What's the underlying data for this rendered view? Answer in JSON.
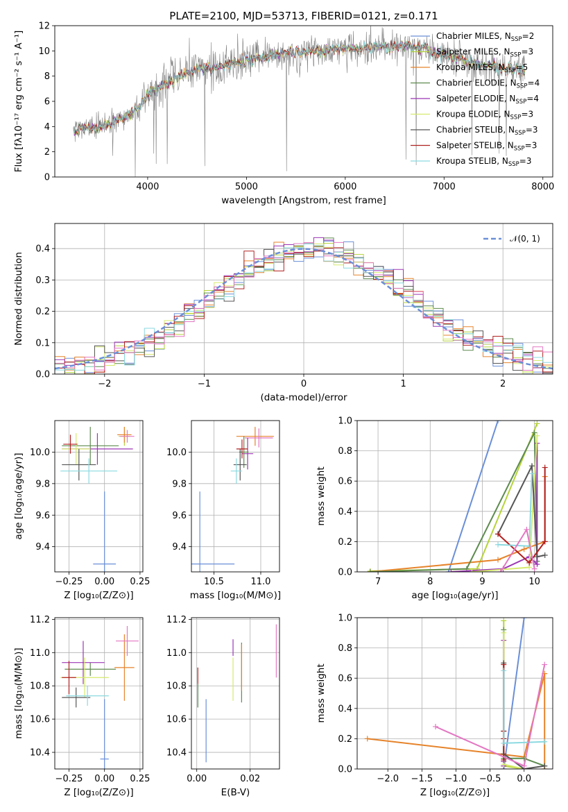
{
  "chart_data": [
    {
      "id": "spectrum",
      "type": "line",
      "title": "PLATE=2100, MJD=53713, FIBERID=0121, z=0.171",
      "xlabel": "wavelength [Angstrom, rest frame]",
      "ylabel": "Flux [fλ10⁻¹⁷ erg cm⁻² s⁻¹ A⁻¹]",
      "xlim": [
        3060,
        8100
      ],
      "ylim": [
        0,
        12
      ],
      "xticks": [
        4000,
        5000,
        6000,
        7000,
        8000
      ],
      "yticks": [
        0,
        2,
        4,
        6,
        8,
        10,
        12
      ],
      "grid": false,
      "legend_position": "right",
      "data_color": "#808080",
      "legend": [
        {
          "name": "Chabrier MILES, N",
          "sub": "SSP",
          "tail": "=2",
          "color": "#6a8fd8"
        },
        {
          "name": "Salpeter MILES, N",
          "sub": "SSP",
          "tail": "=3",
          "color": "#b5d33a"
        },
        {
          "name": "Kroupa MILES, N",
          "sub": "SSP",
          "tail": "=5",
          "color": "#e6832a"
        },
        {
          "name": "Chabrier ELODIE, N",
          "sub": "SSP",
          "tail": "=4",
          "color": "#5d8a4e"
        },
        {
          "name": "Salpeter ELODIE, N",
          "sub": "SSP",
          "tail": "=4",
          "color": "#9b35b5"
        },
        {
          "name": "Kroupa ELODIE, N",
          "sub": "SSP",
          "tail": "=3",
          "color": "#d6ea6c"
        },
        {
          "name": "Chabrier STELIB, N",
          "sub": "SSP",
          "tail": "=3",
          "color": "#555555"
        },
        {
          "name": "Salpeter STELIB, N",
          "sub": "SSP",
          "tail": "=3",
          "color": "#b02020"
        },
        {
          "name": "Kroupa STELIB, N",
          "sub": "SSP",
          "tail": "=3",
          "color": "#8ad9e0"
        }
      ],
      "continuum": {
        "x": [
          3250,
          3500,
          3700,
          3900,
          4000,
          4200,
          4400,
          4600,
          4800,
          5000,
          5200,
          5400,
          5600,
          5800,
          6000,
          6200,
          6400,
          6600,
          6800,
          7000,
          7200,
          7400,
          7600,
          7800
        ],
        "y": [
          3.8,
          3.9,
          4.5,
          5.4,
          6.6,
          7.5,
          8.3,
          8.6,
          8.9,
          9.2,
          9.6,
          9.8,
          10.0,
          10.0,
          10.2,
          10.2,
          10.3,
          10.4,
          10.2,
          9.6,
          9.2,
          8.9,
          8.7,
          8.5
        ]
      }
    },
    {
      "id": "residuals",
      "type": "histogram",
      "xlabel": "(data-model)/error",
      "ylabel": "Normed distribution",
      "xlim": [
        -2.5,
        2.5
      ],
      "ylim": [
        0,
        0.48
      ],
      "xticks": [
        -2,
        -1,
        0,
        1,
        2
      ],
      "yticks": [
        0.0,
        0.1,
        0.2,
        0.3,
        0.4
      ],
      "grid": true,
      "legend": "𝒩(0, 1)",
      "legend_position": "top-right",
      "normal_curve": {
        "mean": 0.0,
        "sigma": 1.0,
        "color": "#6a8fd8"
      },
      "bin_edges_start": -2.5,
      "bin_width": 0.1
    },
    {
      "id": "age_vs_Z",
      "type": "errorbar",
      "xlabel": "Z [log₁₀(Z/Z⊙)]",
      "ylabel": "age  [log₁₀(age/yr)]",
      "xlim": [
        -0.35,
        0.27
      ],
      "ylim": [
        9.24,
        10.2
      ],
      "xticks": [
        -0.25,
        0.0,
        0.25
      ],
      "xticklabels": [
        "−0.25",
        "0.00",
        "0.25"
      ],
      "yticks": [
        9.4,
        9.6,
        9.8,
        10.0
      ],
      "grid": true,
      "points": [
        {
          "x": 0.0,
          "xerr": 0.08,
          "y": 9.29,
          "yerr": 0.46,
          "color": "#6a8fd8"
        },
        {
          "x": 0.14,
          "xerr": 0.04,
          "y": 10.1,
          "yerr": 0.06,
          "color": "#b5d33a"
        },
        {
          "x": 0.14,
          "xerr": 0.05,
          "y": 10.11,
          "yerr": 0.05,
          "color": "#e6832a"
        },
        {
          "x": -0.1,
          "xerr": 0.2,
          "y": 10.04,
          "yerr": 0.12,
          "color": "#5d8a4e"
        },
        {
          "x": -0.05,
          "xerr": 0.25,
          "y": 10.02,
          "yerr": 0.1,
          "color": "#9b35b5"
        },
        {
          "x": -0.2,
          "xerr": 0.1,
          "y": 10.02,
          "yerr": 0.1,
          "color": "#d6ea6c"
        },
        {
          "x": -0.18,
          "xerr": 0.12,
          "y": 9.92,
          "yerr": 0.1,
          "color": "#555555"
        },
        {
          "x": -0.24,
          "xerr": 0.05,
          "y": 10.05,
          "yerr": 0.06,
          "color": "#b02020"
        },
        {
          "x": -0.11,
          "xerr": 0.2,
          "y": 9.88,
          "yerr": 0.08,
          "color": "#8ad9e0"
        },
        {
          "x": 0.16,
          "xerr": 0.05,
          "y": 10.1,
          "yerr": 0.04,
          "color": "#e377c2"
        }
      ]
    },
    {
      "id": "age_vs_mass",
      "type": "errorbar",
      "xlabel": "mass [log₁₀(M/M⊙)]",
      "ylabel": "",
      "xlim": [
        10.26,
        11.2
      ],
      "ylim": [
        9.24,
        10.2
      ],
      "xticks": [
        10.5,
        11.0
      ],
      "xticklabels": [
        "10.5",
        "11.0"
      ],
      "yticks": [
        9.4,
        9.6,
        9.8,
        10.0
      ],
      "grid": true,
      "points": [
        {
          "x": 10.35,
          "xerr": 0.37,
          "y": 9.29,
          "yerr": 0.46,
          "color": "#6a8fd8"
        },
        {
          "x": 10.94,
          "xerr": 0.2,
          "y": 10.1,
          "yerr": 0.06,
          "color": "#e6832a"
        },
        {
          "x": 10.98,
          "xerr": 0.15,
          "y": 10.09,
          "yerr": 0.06,
          "color": "#e377c2"
        },
        {
          "x": 10.86,
          "xerr": 0.06,
          "y": 9.99,
          "yerr": 0.1,
          "color": "#9b35b5"
        },
        {
          "x": 10.82,
          "xerr": 0.05,
          "y": 10.0,
          "yerr": 0.1,
          "color": "#5d8a4e"
        },
        {
          "x": 10.78,
          "xerr": 0.07,
          "y": 9.92,
          "yerr": 0.1,
          "color": "#555555"
        },
        {
          "x": 10.8,
          "xerr": 0.06,
          "y": 10.02,
          "yerr": 0.06,
          "color": "#b02020"
        },
        {
          "x": 10.74,
          "xerr": 0.06,
          "y": 9.88,
          "yerr": 0.08,
          "color": "#8ad9e0"
        }
      ]
    },
    {
      "id": "weight_vs_age",
      "type": "line",
      "xlabel": "age  [log₁₀(age/yr)]",
      "ylabel": "mass weight",
      "xlim": [
        6.6,
        10.35
      ],
      "ylim": [
        0,
        1
      ],
      "xticks": [
        7,
        8,
        9,
        10
      ],
      "yticks": [
        0.0,
        0.2,
        0.4,
        0.6,
        0.8,
        1.0
      ],
      "grid": true,
      "series": [
        {
          "color": "#6a8fd8",
          "x": [
            8.35,
            9.3
          ],
          "y": [
            0.0,
            1.0
          ]
        },
        {
          "color": "#b5d33a",
          "x": [
            6.85,
            8.9,
            10.05
          ],
          "y": [
            0.005,
            0.02,
            0.98
          ]
        },
        {
          "color": "#e6832a",
          "x": [
            6.85,
            9.3,
            9.8,
            10.2,
            10.2
          ],
          "y": [
            0.0,
            0.08,
            0.15,
            0.2,
            0.63
          ]
        },
        {
          "color": "#5d8a4e",
          "x": [
            6.85,
            8.7,
            10.0,
            10.05
          ],
          "y": [
            0.0,
            0.02,
            0.92,
            0.07
          ]
        },
        {
          "color": "#9b35b5",
          "x": [
            8.4,
            9.4,
            9.9,
            10.05,
            10.05
          ],
          "y": [
            0.0,
            0.02,
            0.1,
            0.05,
            0.85
          ]
        },
        {
          "color": "#d6ea6c",
          "x": [
            8.8,
            9.9,
            10.05
          ],
          "y": [
            0.0,
            0.03,
            0.9
          ]
        },
        {
          "color": "#555555",
          "x": [
            9.3,
            9.95,
            10.05,
            10.2
          ],
          "y": [
            0.25,
            0.7,
            0.1,
            0.11
          ]
        },
        {
          "color": "#b02020",
          "x": [
            9.3,
            9.9,
            10.2,
            10.2
          ],
          "y": [
            0.25,
            0.06,
            0.2,
            0.69
          ]
        },
        {
          "color": "#8ad9e0",
          "x": [
            9.3,
            9.9,
            9.95
          ],
          "y": [
            0.18,
            0.17,
            0.65
          ]
        },
        {
          "color": "#e377c2",
          "x": [
            9.35,
            9.85,
            10.0
          ],
          "y": [
            0.0,
            0.28,
            0.02
          ]
        }
      ]
    },
    {
      "id": "mass_vs_Z",
      "type": "errorbar",
      "xlabel": "Z [log₁₀(Z/Z⊙)]",
      "ylabel": "mass [log₁₀(M/M⊙)]",
      "xlim": [
        -0.35,
        0.27
      ],
      "ylim": [
        10.3,
        11.21
      ],
      "xticks": [
        -0.25,
        0.0,
        0.25
      ],
      "xticklabels": [
        "−0.25",
        "0.00",
        "0.25"
      ],
      "yticks": [
        10.4,
        10.6,
        10.8,
        11.0,
        11.2
      ],
      "grid": true,
      "points": [
        {
          "x": 0.0,
          "xerr": 0.03,
          "y": 10.36,
          "yerr": 0.36,
          "color": "#6a8fd8"
        },
        {
          "x": 0.14,
          "xerr": 0.07,
          "y": 10.91,
          "yerr": 0.2,
          "color": "#e6832a"
        },
        {
          "x": 0.16,
          "xerr": 0.08,
          "y": 11.07,
          "yerr": 0.09,
          "color": "#e377c2"
        },
        {
          "x": -0.1,
          "xerr": 0.18,
          "y": 10.9,
          "yerr": 0.04,
          "color": "#5d8a4e"
        },
        {
          "x": -0.15,
          "xerr": 0.15,
          "y": 10.94,
          "yerr": 0.13,
          "color": "#9b35b5"
        },
        {
          "x": -0.14,
          "xerr": 0.17,
          "y": 10.85,
          "yerr": 0.12,
          "color": "#d6ea6c"
        },
        {
          "x": -0.25,
          "xerr": 0.05,
          "y": 10.85,
          "yerr": 0.1,
          "color": "#b02020"
        },
        {
          "x": -0.2,
          "xerr": 0.1,
          "y": 10.73,
          "yerr": 0.06,
          "color": "#555555"
        },
        {
          "x": -0.12,
          "xerr": 0.15,
          "y": 10.74,
          "yerr": 0.06,
          "color": "#8ad9e0"
        }
      ]
    },
    {
      "id": "mass_vs_ebv",
      "type": "errorbar",
      "xlabel": "E(B-V)",
      "ylabel": "",
      "xlim": [
        -0.002,
        0.031
      ],
      "ylim": [
        10.3,
        11.21
      ],
      "xticks": [
        0.0,
        0.02
      ],
      "xticklabels": [
        "0.00",
        "0.02"
      ],
      "yticks": [
        10.4,
        10.6,
        10.8,
        11.0,
        11.2
      ],
      "grid": true,
      "points": [
        {
          "x": 0.0035,
          "xerr": 0.0,
          "y": 10.53,
          "yerr": 0.19,
          "color": "#6a8fd8"
        },
        {
          "x": 0.0004,
          "xerr": 0.0,
          "y": 10.86,
          "yerr": 0.05,
          "color": "#b02020"
        },
        {
          "x": 0.0004,
          "xerr": 0.0,
          "y": 10.74,
          "yerr": 0.07,
          "color": "#8ad9e0"
        },
        {
          "x": 0.0004,
          "xerr": 0.0,
          "y": 10.74,
          "yerr": 0.07,
          "color": "#5d8a4e"
        },
        {
          "x": 0.0136,
          "xerr": 0.0,
          "y": 11.03,
          "yerr": 0.05,
          "color": "#9b35b5"
        },
        {
          "x": 0.0136,
          "xerr": 0.0,
          "y": 10.84,
          "yerr": 0.13,
          "color": "#d6ea6c"
        },
        {
          "x": 0.0168,
          "xerr": 0.0,
          "y": 10.88,
          "yerr": 0.18,
          "color": "#5d8a4e"
        },
        {
          "x": 0.0168,
          "xerr": 0.0,
          "y": 10.91,
          "yerr": 0.14,
          "color": "#e6832a"
        },
        {
          "x": 0.0298,
          "xerr": 0.0,
          "y": 11.01,
          "yerr": 0.16,
          "color": "#e377c2"
        }
      ]
    },
    {
      "id": "weight_vs_Z",
      "type": "line",
      "xlabel": "Z [log₁₀(Z/Z⊙)]",
      "ylabel": "mass weight",
      "xlim": [
        -2.45,
        0.42
      ],
      "ylim": [
        0,
        1
      ],
      "xticks": [
        -2.0,
        -1.5,
        -1.0,
        -0.5,
        0.0
      ],
      "xticklabels": [
        "−2.0",
        "−1.5",
        "−1.0",
        "−0.5",
        "0.0"
      ],
      "yticks": [
        0.0,
        0.2,
        0.4,
        0.6,
        0.8,
        1.0
      ],
      "grid": true,
      "series": [
        {
          "color": "#6a8fd8",
          "x": [
            -0.3,
            0.0
          ],
          "y": [
            0.0,
            1.0
          ]
        },
        {
          "color": "#b5d33a",
          "x": [
            -0.3,
            -0.3,
            0.0
          ],
          "y": [
            0.98,
            0.02,
            0.0
          ]
        },
        {
          "color": "#e6832a",
          "x": [
            -2.3,
            0.0,
            0.3,
            0.3
          ],
          "y": [
            0.2,
            0.08,
            0.63,
            0.0
          ]
        },
        {
          "color": "#5d8a4e",
          "x": [
            -0.3,
            -0.3,
            0.0,
            0.3
          ],
          "y": [
            0.92,
            0.07,
            0.07,
            0.02
          ]
        },
        {
          "color": "#9b35b5",
          "x": [
            -0.3,
            -0.3,
            -0.3
          ],
          "y": [
            0.85,
            0.05,
            0.02
          ]
        },
        {
          "color": "#d6ea6c",
          "x": [
            -0.3,
            -0.3,
            0.0
          ],
          "y": [
            0.9,
            0.03,
            0.0
          ]
        },
        {
          "color": "#555555",
          "x": [
            -0.3,
            -0.3,
            -0.3,
            0.0,
            0.3
          ],
          "y": [
            0.7,
            0.25,
            0.1,
            0.0,
            0.02
          ]
        },
        {
          "color": "#b02020",
          "x": [
            -0.3,
            -0.3,
            -0.3,
            -0.3
          ],
          "y": [
            0.25,
            0.06,
            0.2,
            0.69
          ]
        },
        {
          "color": "#8ad9e0",
          "x": [
            -0.3,
            -0.3,
            0.3
          ],
          "y": [
            0.65,
            0.17,
            0.18
          ]
        },
        {
          "color": "#e377c2",
          "x": [
            -1.3,
            0.0,
            0.3
          ],
          "y": [
            0.28,
            0.02,
            0.69
          ]
        }
      ]
    }
  ]
}
